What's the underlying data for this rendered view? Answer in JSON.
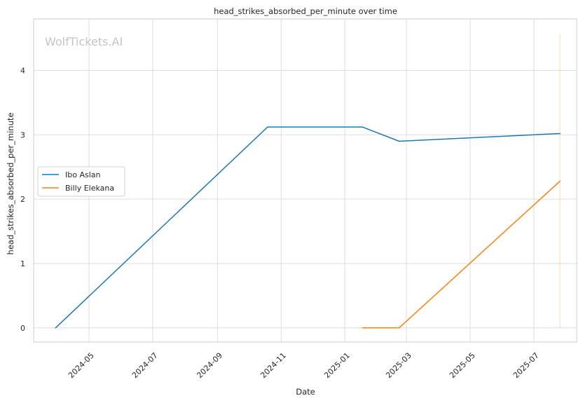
{
  "chart_data": {
    "type": "line",
    "title": "head_strikes_absorbed_per_minute over time",
    "xlabel": "Date",
    "ylabel": "head_strikes_absorbed_per_minute",
    "watermark": "WolfTickets.AI",
    "xlim": [
      "2024-03-09",
      "2025-08-11"
    ],
    "ylim": [
      -0.22,
      4.8
    ],
    "xticks": [
      "2024-05",
      "2024-07",
      "2024-09",
      "2024-11",
      "2025-01",
      "2025-03",
      "2025-05",
      "2025-07"
    ],
    "yticks": [
      0,
      1,
      2,
      3,
      4
    ],
    "grid": true,
    "legend_position": "center-left",
    "series": [
      {
        "name": "Ibo Aslan",
        "color": "#1f77b4",
        "points": [
          {
            "x": "2024-03-30",
            "y": 0.0
          },
          {
            "x": "2024-10-19",
            "y": 3.12
          },
          {
            "x": "2025-01-18",
            "y": 3.12
          },
          {
            "x": "2025-02-22",
            "y": 2.9
          },
          {
            "x": "2025-07-26",
            "y": 3.02
          }
        ]
      },
      {
        "name": "Billy Elekana",
        "color": "#ff7f0e",
        "points": [
          {
            "x": "2025-01-18",
            "y": 0.0
          },
          {
            "x": "2025-02-22",
            "y": 0.0
          },
          {
            "x": "2025-07-26",
            "y": 2.28
          }
        ]
      }
    ],
    "vlines": [
      {
        "x": "2025-07-26",
        "y_range": [
          0,
          4.57
        ],
        "color": "#ff7f0e"
      }
    ]
  }
}
